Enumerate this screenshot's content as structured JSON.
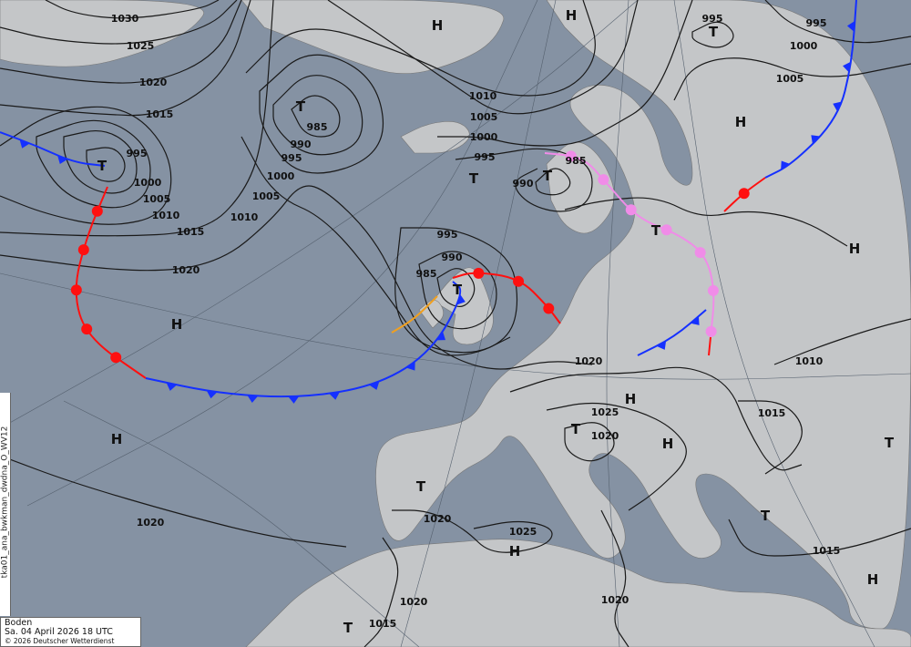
{
  "legend": {
    "title": "Boden",
    "date": "Sa. 04 April 2026 18 UTC",
    "copyright": "© 2026 Deutscher Wetterdienst"
  },
  "side_label": "tka01_ana_bwkman_dwdna_O_WV12",
  "colors": {
    "sea": "#8592a3",
    "land": "#c4c6c8",
    "isobar": "#1a1a1a",
    "cold_front": "#1530ff",
    "warm_front": "#ff1010",
    "occlusion": "#f08ce8",
    "trough": "#f0a020"
  },
  "isobar_labels": [
    "1030",
    "1025",
    "1020",
    "1015",
    "995",
    "1000",
    "1005",
    "1010",
    "1015",
    "1020",
    "985",
    "990",
    "995",
    "1000",
    "1005",
    "1010",
    "1010",
    "1005",
    "1000",
    "995",
    "990",
    "985",
    "995",
    "990",
    "985",
    "995",
    "995",
    "1000",
    "1005",
    "1020",
    "1025",
    "1020",
    "1015",
    "1010",
    "1020",
    "1020",
    "1025",
    "1020",
    "1015",
    "1020",
    "1015"
  ],
  "pressure_centers": [
    "H",
    "H",
    "T",
    "T",
    "T",
    "T",
    "T",
    "H",
    "T",
    "H",
    "T",
    "H",
    "H",
    "T",
    "T",
    "H",
    "H",
    "T",
    "T",
    "H",
    "H",
    "T"
  ]
}
